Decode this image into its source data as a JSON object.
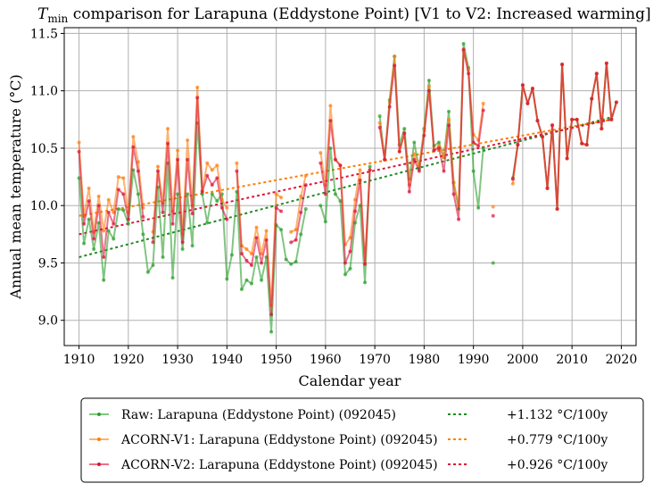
{
  "chart_data": {
    "type": "line",
    "title_var": "T",
    "title_sub": "min",
    "title_rest": " comparison for Larapuna (Eddystone Point)   [V1 to V2: Increased warming]",
    "xlabel": "Calendar year",
    "ylabel": "Annual mean temperature (°C)",
    "xlim": [
      1907,
      2023
    ],
    "ylim": [
      8.78,
      11.55
    ],
    "xticks": [
      1910,
      1920,
      1930,
      1940,
      1950,
      1960,
      1970,
      1980,
      1990,
      2000,
      2010,
      2020
    ],
    "yticks": [
      "9.0",
      "9.5",
      "10.0",
      "10.5",
      "11.0",
      "11.5"
    ],
    "grid": true,
    "legend_position": "below",
    "series": [
      {
        "name": "Raw: Larapuna (Eddystone Point) (092045)",
        "color": "#2ca02c",
        "start_year": 1910,
        "values": [
          10.24,
          9.67,
          9.88,
          9.62,
          9.85,
          9.35,
          9.78,
          9.71,
          9.97,
          9.96,
          9.84,
          10.31,
          10.1,
          9.75,
          9.42,
          9.48,
          10.16,
          9.55,
          10.37,
          9.37,
          10.1,
          9.62,
          10.1,
          9.65,
          10.72,
          10.1,
          9.85,
          10.1,
          10.04,
          10.1,
          9.36,
          9.57,
          10.12,
          9.27,
          9.35,
          9.32,
          9.55,
          9.35,
          9.55,
          8.9,
          9.83,
          9.79,
          9.53,
          9.49,
          9.51,
          9.75,
          9.97,
          null,
          null,
          10.0,
          9.86,
          10.5,
          10.1,
          10.04,
          9.4,
          9.45,
          9.85,
          10.0,
          9.33,
          10.34,
          null,
          10.78,
          10.4,
          10.92,
          11.3,
          10.53,
          10.67,
          10.23,
          10.55,
          10.32,
          10.67,
          11.09,
          10.52,
          10.55,
          10.42,
          10.82,
          10.2,
          9.97,
          11.41,
          11.2,
          10.3,
          9.98,
          10.5,
          null,
          9.5,
          null,
          null,
          null,
          10.24,
          10.53,
          11.05,
          10.89,
          11.02,
          10.74,
          10.6,
          10.15,
          10.7,
          9.97,
          11.23,
          10.41,
          10.75,
          10.75,
          10.54,
          10.53,
          10.93,
          11.15,
          10.67,
          11.24,
          10.75,
          10.9
        ]
      },
      {
        "name": "ACORN-V1: Larapuna (Eddystone Point) (092045)",
        "color": "#ff7f0e",
        "start_year": 1910,
        "values": [
          10.55,
          9.91,
          10.15,
          9.77,
          10.08,
          9.78,
          10.05,
          9.94,
          10.25,
          10.24,
          9.94,
          10.6,
          10.38,
          9.98,
          null,
          9.77,
          10.34,
          10.02,
          10.67,
          9.95,
          10.48,
          9.75,
          10.57,
          10.0,
          11.03,
          10.13,
          10.37,
          10.31,
          10.35,
          10.05,
          9.98,
          null,
          10.37,
          9.65,
          9.62,
          9.58,
          9.81,
          9.58,
          9.78,
          9.13,
          10.1,
          10.07,
          null,
          9.77,
          9.79,
          10.08,
          10.26,
          null,
          null,
          10.46,
          10.18,
          10.87,
          10.4,
          10.35,
          9.66,
          9.72,
          10.05,
          10.31,
          9.49,
          10.31,
          null,
          10.72,
          10.4,
          10.9,
          11.3,
          10.47,
          10.63,
          10.18,
          10.45,
          10.35,
          10.65,
          11.04,
          10.48,
          10.52,
          10.42,
          10.75,
          10.2,
          10.0,
          11.35,
          11.18,
          10.62,
          10.57,
          10.89,
          null,
          9.99,
          null,
          null,
          null,
          10.19,
          10.53,
          11.05,
          10.89,
          11.02,
          10.74,
          10.6,
          10.15,
          10.7,
          9.97,
          11.23,
          10.41,
          10.75,
          10.75,
          10.54,
          10.53,
          10.93,
          11.15,
          10.67,
          11.24,
          10.75,
          10.9
        ]
      },
      {
        "name": "ACORN-V2: Larapuna (Eddystone Point) (092045)",
        "color": "#dc143c",
        "start_year": 1910,
        "values": [
          10.47,
          9.84,
          10.04,
          9.71,
          10.0,
          9.55,
          9.94,
          9.84,
          10.14,
          10.1,
          9.88,
          10.51,
          10.3,
          9.9,
          null,
          9.68,
          10.3,
          9.94,
          10.54,
          9.84,
          10.4,
          9.68,
          10.4,
          9.93,
          10.94,
          10.12,
          10.26,
          10.18,
          10.24,
          9.98,
          9.88,
          null,
          10.3,
          9.58,
          9.52,
          9.48,
          9.72,
          9.5,
          9.7,
          9.05,
          9.98,
          9.95,
          null,
          9.68,
          9.7,
          9.94,
          10.18,
          null,
          null,
          10.37,
          10.1,
          10.74,
          10.4,
          10.35,
          9.5,
          9.6,
          9.95,
          10.22,
          9.49,
          10.31,
          null,
          10.68,
          10.4,
          10.86,
          11.22,
          10.47,
          10.63,
          10.12,
          10.4,
          10.3,
          10.61,
          11.0,
          10.48,
          10.5,
          10.3,
          10.7,
          10.1,
          9.88,
          11.36,
          11.15,
          10.55,
          10.52,
          10.83,
          null,
          9.91,
          null,
          null,
          null,
          10.23,
          10.53,
          11.05,
          10.89,
          11.02,
          10.74,
          10.6,
          10.15,
          10.7,
          9.97,
          11.23,
          10.41,
          10.75,
          10.75,
          10.54,
          10.53,
          10.93,
          11.15,
          10.67,
          11.24,
          10.75,
          10.9
        ]
      }
    ],
    "trends": [
      {
        "label": "+1.132 °C/100y",
        "color": "#228b22",
        "x": [
          1910,
          2018
        ],
        "y": [
          9.55,
          10.77
        ]
      },
      {
        "label": "+0.779 °C/100y",
        "color": "#ff7f00",
        "x": [
          1910,
          2018
        ],
        "y": [
          9.91,
          10.75
        ]
      },
      {
        "label": "+0.926 °C/100y",
        "color": "#dc143c",
        "x": [
          1910,
          2018
        ],
        "y": [
          9.75,
          10.75
        ]
      }
    ]
  }
}
